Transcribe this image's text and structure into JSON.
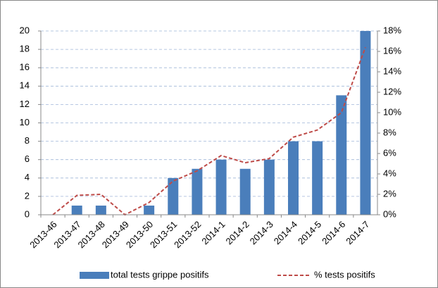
{
  "chart_data": {
    "type": "bar",
    "categories": [
      "2013-46",
      "2013-47",
      "2013-48",
      "2013-49",
      "2013-50",
      "2013-51",
      "2013-52",
      "2014-1",
      "2014-2",
      "2014-3",
      "2014-4",
      "2014-5",
      "2014-6",
      "2014-7"
    ],
    "series": [
      {
        "name": "total tests grippe positifs",
        "type": "bar",
        "color": "#4a7ebb",
        "values": [
          0,
          1,
          1,
          0,
          1,
          4,
          5,
          6,
          5,
          6,
          8,
          8,
          13,
          20
        ]
      },
      {
        "name": "% tests positifs",
        "type": "line",
        "axis": "y2",
        "dashed": true,
        "color": "#be4b48",
        "values": [
          0,
          1.9,
          2.0,
          0,
          1.2,
          3.3,
          4.3,
          5.8,
          5.1,
          5.5,
          7.6,
          8.3,
          10.0,
          16.4
        ]
      }
    ],
    "ylim": [
      0,
      20
    ],
    "yticks": [
      0,
      2,
      4,
      6,
      8,
      10,
      12,
      14,
      16,
      18,
      20
    ],
    "y2lim": [
      0,
      18
    ],
    "y2ticks": [
      {
        "value": 0,
        "label": "0%"
      },
      {
        "value": 2,
        "label": "2%"
      },
      {
        "value": 4,
        "label": "4%"
      },
      {
        "value": 6,
        "label": "6%"
      },
      {
        "value": 8,
        "label": "8%"
      },
      {
        "value": 10,
        "label": "10%"
      },
      {
        "value": 12,
        "label": "12%"
      },
      {
        "value": 14,
        "label": "14%"
      },
      {
        "value": 16,
        "label": "16%"
      },
      {
        "value": 18,
        "label": "18%"
      }
    ],
    "grid": true,
    "legend": "bottom"
  }
}
